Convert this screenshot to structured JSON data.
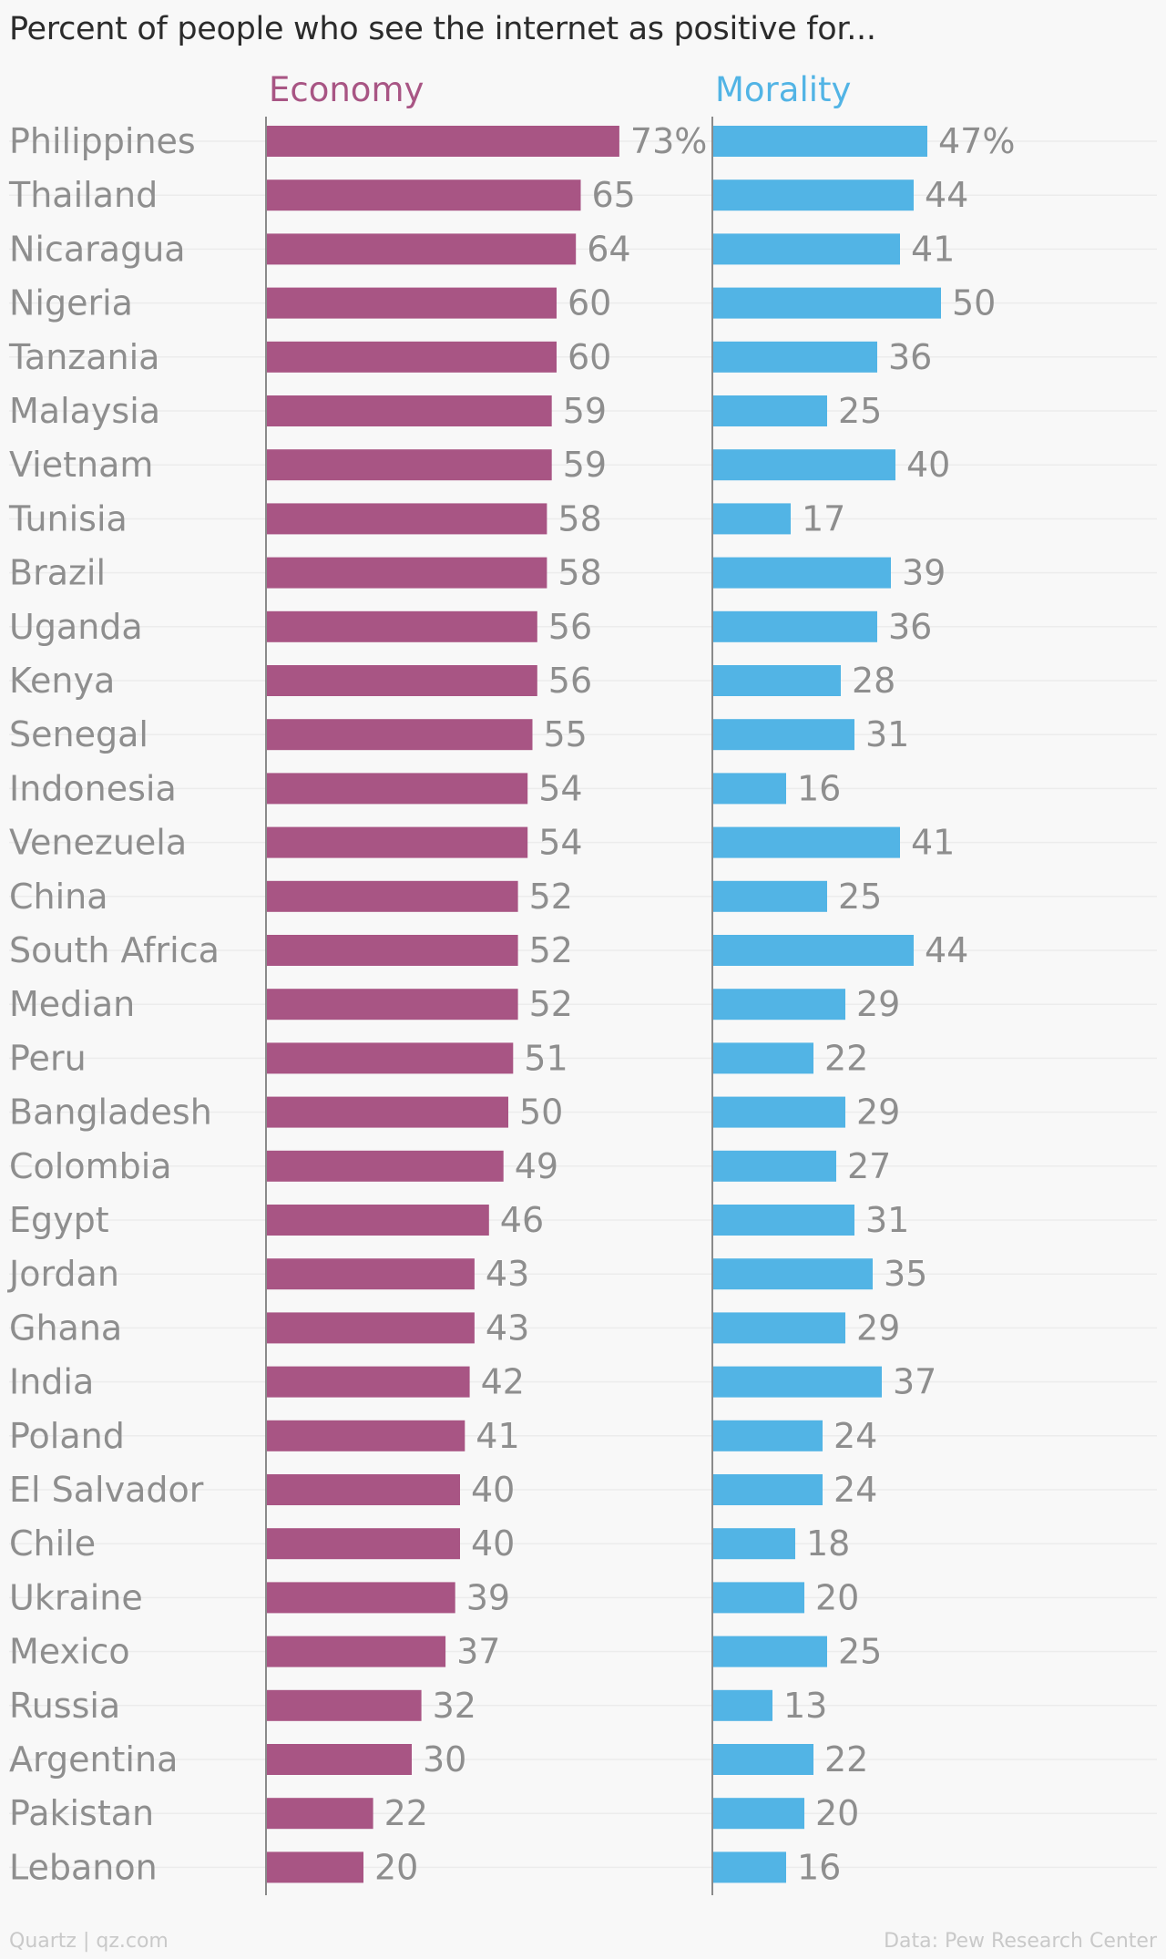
{
  "chart_data": {
    "type": "bar",
    "title": "Percent of people who see the internet as positive for...",
    "categories": [
      "Philippines",
      "Thailand",
      "Nicaragua",
      "Nigeria",
      "Tanzania",
      "Malaysia",
      "Vietnam",
      "Tunisia",
      "Brazil",
      "Uganda",
      "Kenya",
      "Senegal",
      "Indonesia",
      "Venezuela",
      "China",
      "South Africa",
      "Median",
      "Peru",
      "Bangladesh",
      "Colombia",
      "Egypt",
      "Jordan",
      "Ghana",
      "India",
      "Poland",
      "El Salvador",
      "Chile",
      "Ukraine",
      "Mexico",
      "Russia",
      "Argentina",
      "Pakistan",
      "Lebanon"
    ],
    "series": [
      {
        "name": "Economy",
        "color": "#a85584",
        "values": [
          73,
          65,
          64,
          60,
          60,
          59,
          59,
          58,
          58,
          56,
          56,
          55,
          54,
          54,
          52,
          52,
          52,
          51,
          50,
          49,
          46,
          43,
          43,
          42,
          41,
          40,
          40,
          39,
          37,
          32,
          30,
          22,
          20
        ]
      },
      {
        "name": "Morality",
        "color": "#52b4e5",
        "values": [
          47,
          44,
          41,
          50,
          36,
          25,
          40,
          17,
          39,
          36,
          28,
          31,
          16,
          41,
          25,
          44,
          29,
          22,
          29,
          27,
          31,
          35,
          29,
          37,
          24,
          24,
          18,
          20,
          25,
          13,
          22,
          20,
          16
        ]
      }
    ],
    "value_suffix_first_row": "%",
    "legend": "top",
    "grid": true
  },
  "footer": {
    "source_left": "Quartz | qz.com",
    "source_right": "Data: Pew Research Center"
  }
}
